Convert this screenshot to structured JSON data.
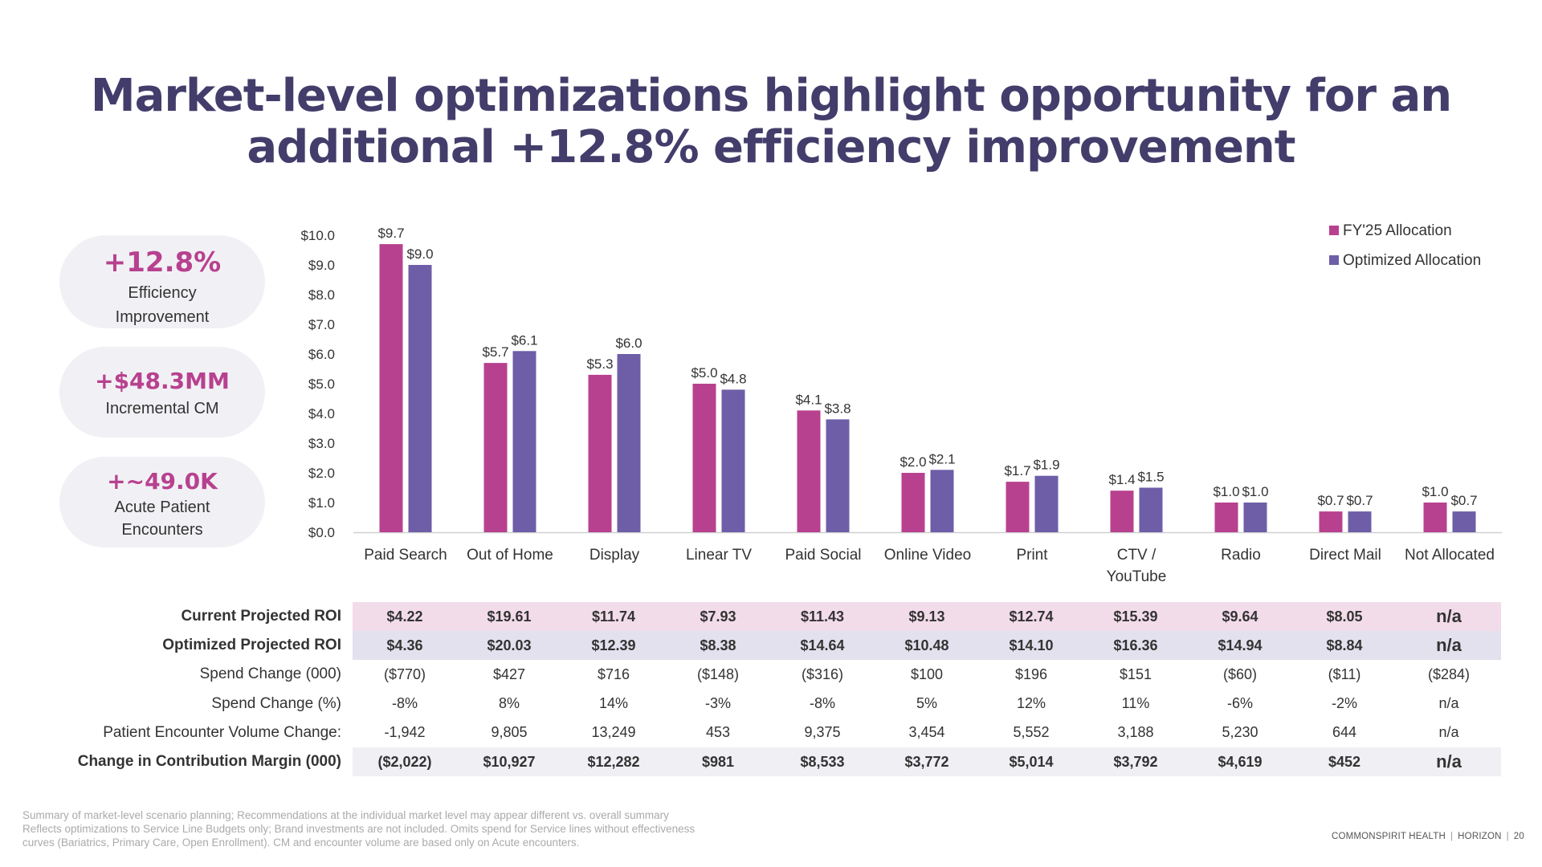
{
  "title": {
    "line1": "Market-level optimizations highlight opportunity for an",
    "line2": "additional +12.8% efficiency improvement"
  },
  "kpis": [
    {
      "value": "+12.8%",
      "label1": "Efficiency",
      "label2": "Improvement"
    },
    {
      "value": "+$48.3MM",
      "label1": "Incremental CM",
      "label2": ""
    },
    {
      "value": "+~49.0K",
      "label1": "Acute Patient",
      "label2": "Encounters"
    }
  ],
  "colors": {
    "fy25": "#b8418f",
    "optimized": "#6e5ea8",
    "title": "#433d6b"
  },
  "chart_data": {
    "type": "bar",
    "categories": [
      "Paid Search",
      "Out of Home",
      "Display",
      "Linear TV",
      "Paid Social",
      "Online Video",
      "Print",
      "CTV / YouTube",
      "Radio",
      "Direct Mail",
      "Not Allocated"
    ],
    "category_lines": [
      [
        "Paid Search"
      ],
      [
        "Out of Home"
      ],
      [
        "Display"
      ],
      [
        "Linear TV"
      ],
      [
        "Paid Social"
      ],
      [
        "Online Video"
      ],
      [
        "Print"
      ],
      [
        "CTV /",
        "YouTube"
      ],
      [
        "Radio"
      ],
      [
        "Direct Mail"
      ],
      [
        "Not Allocated"
      ]
    ],
    "series": [
      {
        "name": "FY'25 Allocation",
        "values": [
          9.7,
          5.7,
          5.3,
          5.0,
          4.1,
          2.0,
          1.7,
          1.4,
          1.0,
          0.7,
          1.0
        ],
        "labels": [
          "$9.7",
          "$5.7",
          "$5.3",
          "$5.0",
          "$4.1",
          "$2.0",
          "$1.7",
          "$1.4",
          "$1.0",
          "$0.7",
          "$1.0"
        ]
      },
      {
        "name": "Optimized Allocation",
        "values": [
          9.0,
          6.1,
          6.0,
          4.8,
          3.8,
          2.1,
          1.9,
          1.5,
          1.0,
          0.7,
          0.7
        ],
        "labels": [
          "$9.0",
          "$6.1",
          "$6.0",
          "$4.8",
          "$3.8",
          "$2.1",
          "$1.9",
          "$1.5",
          "$1.0",
          "$0.7",
          "$0.7"
        ]
      }
    ],
    "yticks": [
      "$0.0",
      "$1.0",
      "$2.0",
      "$3.0",
      "$4.0",
      "$5.0",
      "$6.0",
      "$7.0",
      "$8.0",
      "$9.0",
      "$10.0"
    ],
    "ylim": [
      0,
      10
    ],
    "title": "",
    "xlabel": "",
    "ylabel": "",
    "legend": "top-right"
  },
  "table": {
    "rows": [
      {
        "label": "Current Projected ROI",
        "values": [
          "$4.22",
          "$19.61",
          "$11.74",
          "$7.93",
          "$11.43",
          "$9.13",
          "$12.74",
          "$15.39",
          "$9.64",
          "$8.05",
          "n/a"
        ]
      },
      {
        "label": "Optimized Projected ROI",
        "values": [
          "$4.36",
          "$20.03",
          "$12.39",
          "$8.38",
          "$14.64",
          "$10.48",
          "$14.10",
          "$16.36",
          "$14.94",
          "$8.84",
          "n/a"
        ]
      },
      {
        "label": "Spend Change (000)",
        "values": [
          "($770)",
          "$427",
          "$716",
          "($148)",
          "($316)",
          "$100",
          "$196",
          "$151",
          "($60)",
          "($11)",
          "($284)"
        ]
      },
      {
        "label": "Spend Change (%)",
        "values": [
          "-8%",
          "8%",
          "14%",
          "-3%",
          "-8%",
          "5%",
          "12%",
          "11%",
          "-6%",
          "-2%",
          "n/a"
        ]
      },
      {
        "label": "Patient Encounter Volume Change:",
        "values": [
          "-1,942",
          "9,805",
          "13,249",
          "453",
          "9,375",
          "3,454",
          "5,552",
          "3,188",
          "5,230",
          "644",
          "n/a"
        ]
      },
      {
        "label": "Change in Contribution Margin (000)",
        "values": [
          "($2,022)",
          "$10,927",
          "$12,282",
          "$981",
          "$8,533",
          "$3,772",
          "$5,014",
          "$3,792",
          "$4,619",
          "$452",
          "n/a"
        ]
      }
    ]
  },
  "footnote": {
    "line1": "Summary of market-level scenario planning; Recommendations at the individual market level may appear different vs. overall summary",
    "line2": "Reflects optimizations to Service Line Budgets only; Brand investments are not included. Omits spend for Service lines without effectiveness",
    "line3": "curves (Bariatrics, Primary Care, Open Enrollment). CM and encounter volume are based only on Acute encounters."
  },
  "footer": {
    "company": "COMMONSPIRIT HEALTH",
    "project": "HORIZON",
    "page": "20"
  }
}
